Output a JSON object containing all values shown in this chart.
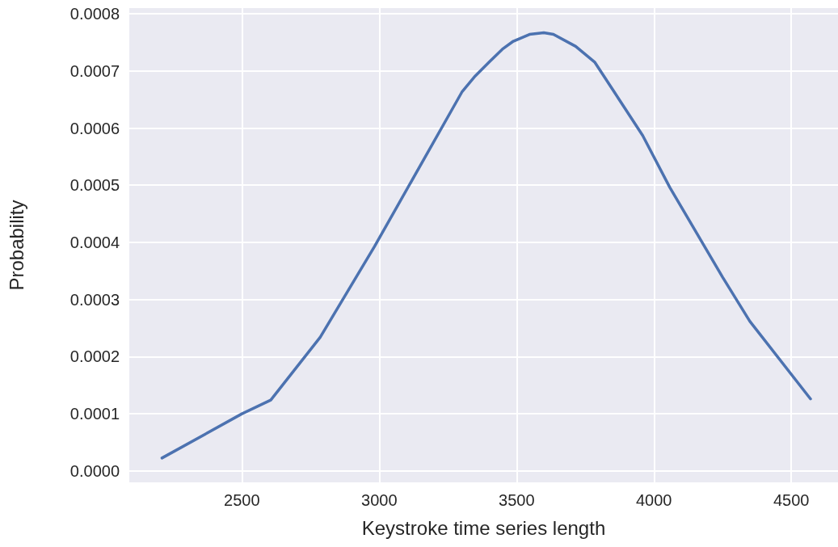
{
  "chart_data": {
    "type": "line",
    "xlabel": "Keystroke time series length",
    "ylabel": "Probability",
    "x": [
      2209,
      2500,
      2605,
      2785,
      2983,
      3302,
      3349,
      3401,
      3448,
      3488,
      3547,
      3599,
      3634,
      3715,
      3785,
      3959,
      4058,
      4250,
      4349,
      4570
    ],
    "series": [
      {
        "color": "#4c72b0",
        "values": [
          2.26e-05,
          0.0001,
          0.000124,
          0.000234,
          0.000393,
          0.000664,
          0.000691,
          0.000716,
          0.000738,
          0.000752,
          0.000764,
          0.000767,
          0.000764,
          0.000743,
          0.000715,
          0.000587,
          0.000496,
          0.000339,
          0.000262,
          0.000126
        ]
      }
    ],
    "xlim": [
      2090,
      4670
    ],
    "xticks": [
      2500,
      3000,
      3500,
      4000,
      4500
    ],
    "ylim": [
      -2e-05,
      0.00081
    ],
    "yticks": [
      {
        "value": 0,
        "label": "0.0000"
      },
      {
        "value": 0.0001,
        "label": "0.0001"
      },
      {
        "value": 0.0002,
        "label": "0.0002"
      },
      {
        "value": 0.0003,
        "label": "0.0003"
      },
      {
        "value": 0.0004,
        "label": "0.0004"
      },
      {
        "value": 0.0005,
        "label": "0.0005"
      },
      {
        "value": 0.0006,
        "label": "0.0006"
      },
      {
        "value": 0.0007,
        "label": "0.0007"
      },
      {
        "value": 0.0008,
        "label": "0.0008"
      }
    ],
    "grid": true,
    "marker": "none",
    "line_style": "solid"
  }
}
